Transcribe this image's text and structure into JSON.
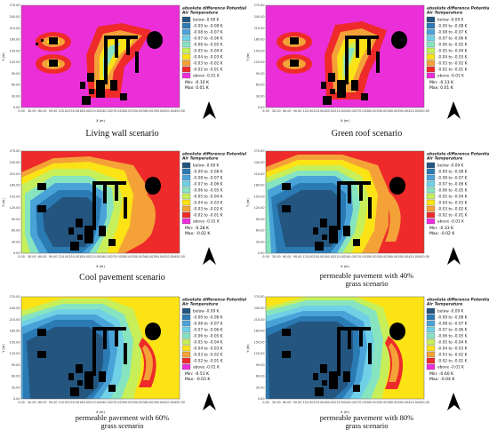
{
  "figure": {
    "legend_title": "absolute difference Potential Air Temperature",
    "legend_title_line1": "absolute difference Potential",
    "legend_title_line2": "Air Temperature",
    "xlabel": "X (m)",
    "ylabel": "Y (m)",
    "legend_classes": [
      {
        "label": "below -0.09 K",
        "color": "#23557f"
      },
      {
        "label": "-0.09 to -0.08 K",
        "color": "#2a7ab4"
      },
      {
        "label": "-0.08 to -0.07 K",
        "color": "#4aa3d8"
      },
      {
        "label": "-0.07 to -0.06 K",
        "color": "#6fd0e6"
      },
      {
        "label": "-0.06 to -0.05 K",
        "color": "#86e4c0"
      },
      {
        "label": "-0.05 to -0.04 K",
        "color": "#c6ef5a"
      },
      {
        "label": "-0.04 to -0.03 K",
        "color": "#fbe316"
      },
      {
        "label": "-0.03 to -0.02 K",
        "color": "#f4a238"
      },
      {
        "label": "-0.02 to -0.01 K",
        "color": "#ee2a2a"
      },
      {
        "label": "above -0.01 K",
        "color": "#ea2fd9"
      }
    ]
  },
  "chart_data": [
    {
      "type": "heatmap",
      "caption": "Living wall scenario",
      "min_label": "Min: -0.10 K",
      "max_label": "Max: 0.01 K",
      "min": -0.1,
      "max": 0.01,
      "x_ticks": [
        "0.00",
        "30.00",
        "60.00",
        "90.00",
        "120.00",
        "150.00",
        "180.00",
        "210.00",
        "240.00",
        "270.00",
        "300.00",
        "330.00",
        "360.00",
        "390.00",
        "420.00",
        "450.00"
      ],
      "y_ticks": [
        "0.00",
        "30.00",
        "60.00",
        "90.00",
        "120.00",
        "150.00",
        "180.00",
        "210.00",
        "240.00",
        "270.00"
      ],
      "xlim": [
        0,
        450
      ],
      "ylim": [
        0,
        270
      ]
    },
    {
      "type": "heatmap",
      "caption": "Green roof scenario",
      "min_label": "Min: -0.13 K",
      "max_label": "Max: 0.01 K",
      "min": -0.13,
      "max": 0.01,
      "x_ticks": [
        "0.00",
        "30.00",
        "60.00",
        "90.00",
        "120.00",
        "150.00",
        "180.00",
        "210.00",
        "240.00",
        "270.00",
        "300.00",
        "330.00",
        "360.00",
        "390.00",
        "420.00",
        "450.00"
      ],
      "y_ticks": [
        "0.00",
        "30.00",
        "60.00",
        "90.00",
        "120.00",
        "150.00",
        "180.00",
        "210.00",
        "240.00",
        "270.00"
      ],
      "xlim": [
        0,
        450
      ],
      "ylim": [
        0,
        270
      ]
    },
    {
      "type": "heatmap",
      "caption": "Cool pavement scenario",
      "min_label": "Min: -0.28 K",
      "max_label": "Max: -0.02 K",
      "min": -0.28,
      "max": -0.02,
      "x_ticks": [
        "0.00",
        "30.00",
        "60.00",
        "90.00",
        "120.00",
        "150.00",
        "180.00",
        "210.00",
        "240.00",
        "270.00",
        "300.00",
        "330.00",
        "360.00",
        "390.00",
        "420.00",
        "450.00"
      ],
      "y_ticks": [
        "0.00",
        "30.00",
        "60.00",
        "90.00",
        "120.00",
        "150.00",
        "180.00",
        "210.00",
        "240.00",
        "270.00"
      ],
      "xlim": [
        0,
        450
      ],
      "ylim": [
        0,
        270
      ]
    },
    {
      "type": "heatmap",
      "caption": "permeable pavement with 40% grass scenario",
      "caption_line1": "permeable pavement with 40%",
      "caption_line2": "grass scenario",
      "min_label": "Min: -0.33 K",
      "max_label": "Max: -0.02 K",
      "min": -0.33,
      "max": -0.02,
      "x_ticks": [
        "0.00",
        "30.00",
        "60.00",
        "90.00",
        "120.00",
        "150.00",
        "180.00",
        "210.00",
        "240.00",
        "270.00",
        "300.00",
        "330.00",
        "360.00",
        "390.00",
        "420.00",
        "450.00"
      ],
      "y_ticks": [
        "0.00",
        "30.00",
        "60.00",
        "90.00",
        "120.00",
        "150.00",
        "180.00",
        "210.00",
        "240.00",
        "270.00"
      ],
      "xlim": [
        0,
        450
      ],
      "ylim": [
        0,
        270
      ]
    },
    {
      "type": "heatmap",
      "caption": "permeable pavement with 60% grass scenario",
      "caption_line1": "permeable pavement with 60%",
      "caption_line2": "grass scenario",
      "min_label": "Min: -0.51 K",
      "max_label": "Max: -0.03 K",
      "min": -0.51,
      "max": -0.03,
      "x_ticks": [
        "0.00",
        "30.00",
        "60.00",
        "90.00",
        "120.00",
        "150.00",
        "180.00",
        "210.00",
        "240.00",
        "270.00",
        "300.00",
        "330.00",
        "360.00",
        "390.00",
        "420.00",
        "450.00"
      ],
      "y_ticks": [
        "0.00",
        "30.00",
        "60.00",
        "90.00",
        "120.00",
        "150.00",
        "180.00",
        "210.00",
        "240.00",
        "270.00"
      ],
      "xlim": [
        0,
        450
      ],
      "ylim": [
        0,
        270
      ]
    },
    {
      "type": "heatmap",
      "caption": "permeable pavement with 80% grass scenario",
      "caption_line1": "permeable pavement with 80%",
      "caption_line2": "grass scenario",
      "min_label": "Min: -0.60 K",
      "max_label": "Max: -0.04 K",
      "min": -0.6,
      "max": -0.04,
      "x_ticks": [
        "0.00",
        "30.00",
        "60.00",
        "90.00",
        "120.00",
        "150.00",
        "180.00",
        "210.00",
        "240.00",
        "270.00",
        "300.00",
        "330.00",
        "360.00",
        "390.00",
        "420.00",
        "450.00"
      ],
      "y_ticks": [
        "0.00",
        "30.00",
        "60.00",
        "90.00",
        "120.00",
        "150.00",
        "180.00",
        "210.00",
        "240.00",
        "270.00"
      ],
      "xlim": [
        0,
        450
      ],
      "ylim": [
        0,
        270
      ]
    }
  ]
}
